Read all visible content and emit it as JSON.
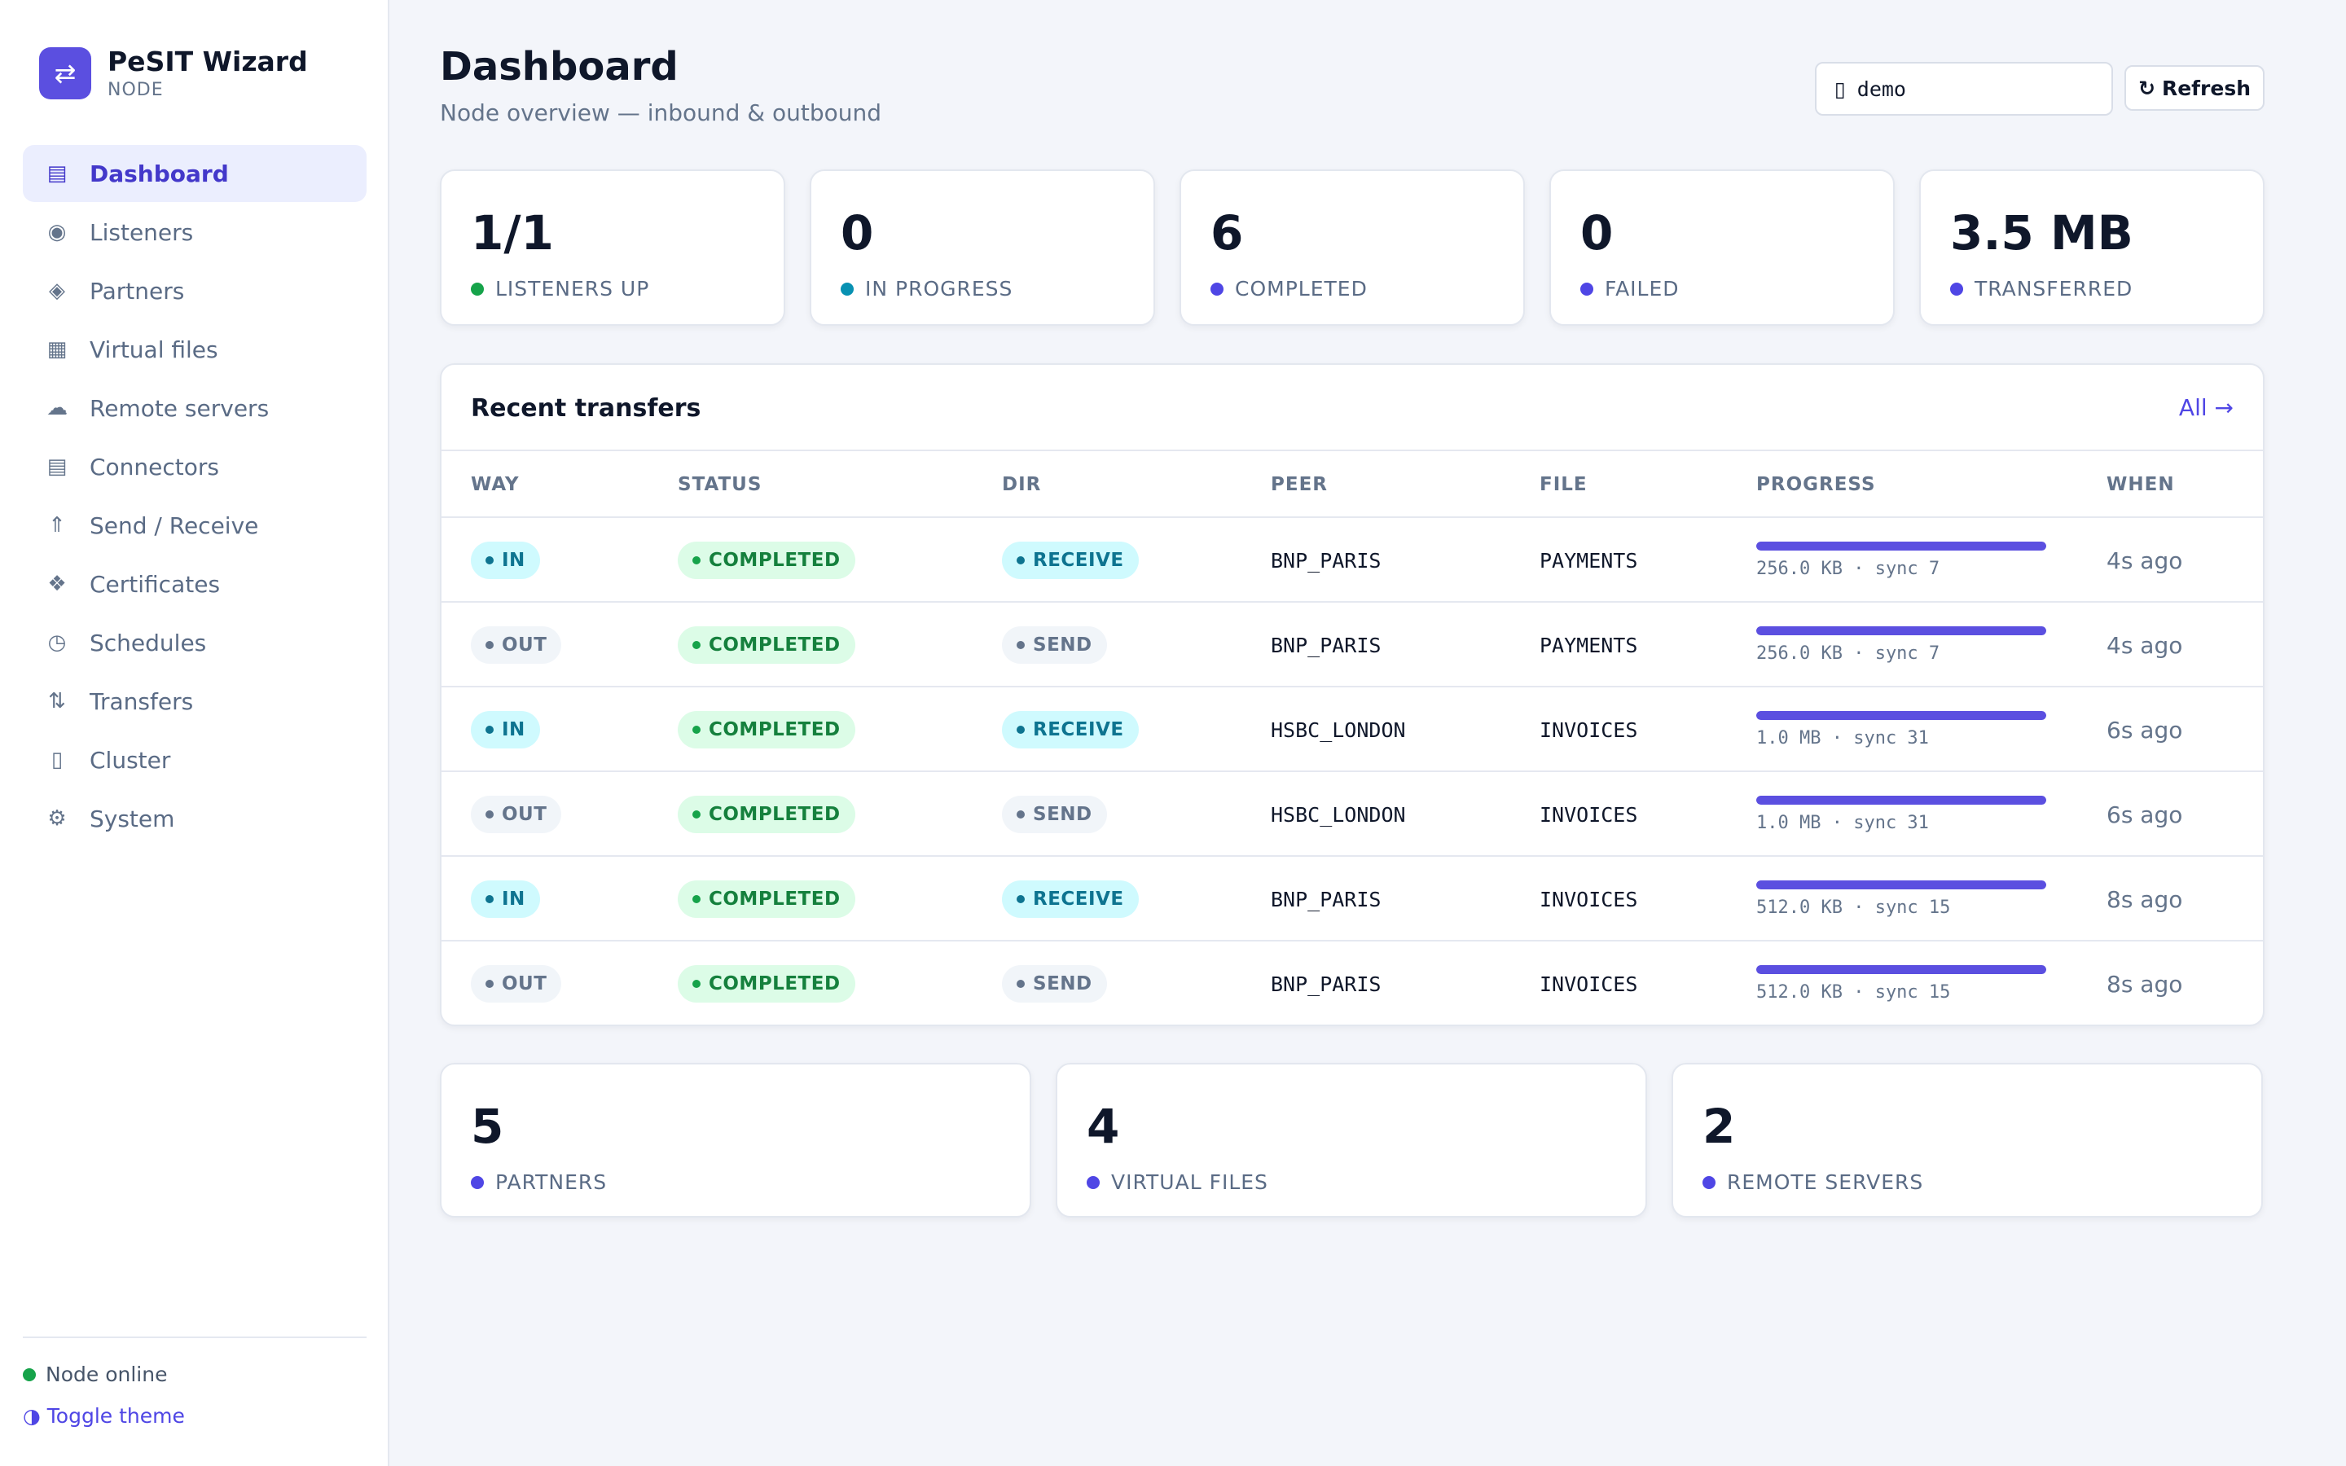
{
  "brand": {
    "logo_glyph": "⇄",
    "title": "PeSIT Wizard",
    "subtitle": "NODE"
  },
  "nav": [
    {
      "icon": "▤",
      "icon_name": "dashboard-icon",
      "label": "Dashboard",
      "active": true
    },
    {
      "icon": "◉",
      "icon_name": "radio-icon",
      "label": "Listeners"
    },
    {
      "icon": "◈",
      "icon_name": "diamond-icon",
      "label": "Partners"
    },
    {
      "icon": "▦",
      "icon_name": "grid-icon",
      "label": "Virtual files"
    },
    {
      "icon": "☁",
      "icon_name": "cloud-icon",
      "label": "Remote servers"
    },
    {
      "icon": "▤",
      "icon_name": "connector-icon",
      "label": "Connectors"
    },
    {
      "icon": "⇑",
      "icon_name": "upload-icon",
      "label": "Send / Receive"
    },
    {
      "icon": "❖",
      "icon_name": "certificate-icon",
      "label": "Certificates"
    },
    {
      "icon": "◷",
      "icon_name": "clock-icon",
      "label": "Schedules"
    },
    {
      "icon": "⇅",
      "icon_name": "transfer-icon",
      "label": "Transfers"
    },
    {
      "icon": "▯",
      "icon_name": "cluster-icon",
      "label": "Cluster"
    },
    {
      "icon": "⚙",
      "icon_name": "gear-icon",
      "label": "System"
    }
  ],
  "footer": {
    "status": "Node online",
    "theme_icon": "◑",
    "theme_label": "Toggle theme"
  },
  "header": {
    "title": "Dashboard",
    "subtitle": "Node overview — inbound & outbound",
    "node_value": "demo",
    "refresh_icon": "↻",
    "refresh_label": "Refresh"
  },
  "stats": [
    {
      "value": "1/1",
      "label": "LISTENERS UP",
      "dot_color": "#16a34a"
    },
    {
      "value": "0",
      "label": "IN PROGRESS",
      "dot_color": "#0891b2"
    },
    {
      "value": "6",
      "label": "COMPLETED",
      "dot_color": "#4f46e5"
    },
    {
      "value": "0",
      "label": "FAILED",
      "dot_color": "#4f46e5"
    },
    {
      "value": "3.5 MB",
      "label": "TRANSFERRED",
      "dot_color": "#4f46e5"
    }
  ],
  "transfers": {
    "title": "Recent transfers",
    "all_label": "All →",
    "columns": [
      "WAY",
      "STATUS",
      "DIR",
      "PEER",
      "FILE",
      "PROGRESS",
      "WHEN"
    ],
    "rows": [
      {
        "way": "IN",
        "status": "COMPLETED",
        "dir": "RECEIVE",
        "peer": "BNP_PARIS",
        "file": "PAYMENTS",
        "progress": 1.0,
        "progress_text": "256.0 KB · sync 7",
        "when": "4s ago"
      },
      {
        "way": "OUT",
        "status": "COMPLETED",
        "dir": "SEND",
        "peer": "BNP_PARIS",
        "file": "PAYMENTS",
        "progress": 1.0,
        "progress_text": "256.0 KB · sync 7",
        "when": "4s ago"
      },
      {
        "way": "IN",
        "status": "COMPLETED",
        "dir": "RECEIVE",
        "peer": "HSBC_LONDON",
        "file": "INVOICES",
        "progress": 1.0,
        "progress_text": "1.0 MB · sync 31",
        "when": "6s ago"
      },
      {
        "way": "OUT",
        "status": "COMPLETED",
        "dir": "SEND",
        "peer": "HSBC_LONDON",
        "file": "INVOICES",
        "progress": 1.0,
        "progress_text": "1.0 MB · sync 31",
        "when": "6s ago"
      },
      {
        "way": "IN",
        "status": "COMPLETED",
        "dir": "RECEIVE",
        "peer": "BNP_PARIS",
        "file": "INVOICES",
        "progress": 1.0,
        "progress_text": "512.0 KB · sync 15",
        "when": "8s ago"
      },
      {
        "way": "OUT",
        "status": "COMPLETED",
        "dir": "SEND",
        "peer": "BNP_PARIS",
        "file": "INVOICES",
        "progress": 1.0,
        "progress_text": "512.0 KB · sync 15",
        "when": "8s ago"
      }
    ]
  },
  "counts": [
    {
      "value": "5",
      "label": "PARTNERS",
      "dot_color": "#4f46e5"
    },
    {
      "value": "4",
      "label": "VIRTUAL FILES",
      "dot_color": "#4f46e5"
    },
    {
      "value": "2",
      "label": "REMOTE SERVERS",
      "dot_color": "#4f46e5"
    }
  ]
}
